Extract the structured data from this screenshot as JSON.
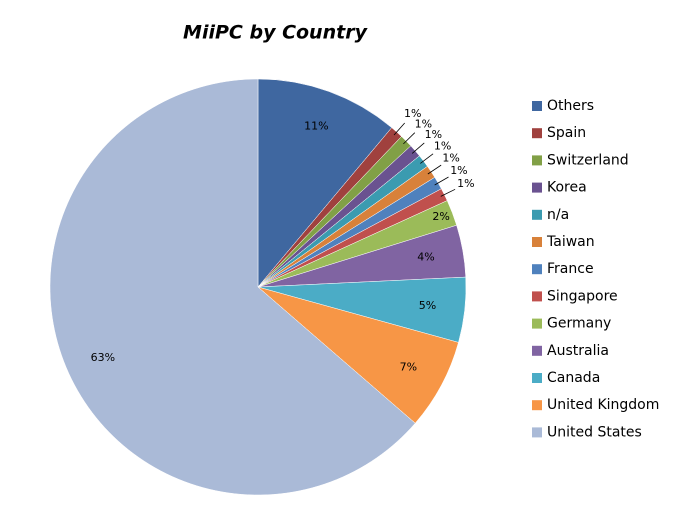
{
  "chart_data": {
    "type": "pie",
    "title": "MiiPC by Country",
    "categories": [
      "Others",
      "Spain",
      "Switzerland",
      "Korea",
      "n/a",
      "Taiwan",
      "France",
      "Singapore",
      "Germany",
      "Australia",
      "Canada",
      "United Kingdom",
      "United States"
    ],
    "values": [
      11,
      1,
      1,
      1,
      1,
      1,
      1,
      1,
      2,
      4,
      5,
      7,
      63
    ],
    "value_labels": [
      "11%",
      "1%",
      "1%",
      "1%",
      "1%",
      "1%",
      "1%",
      "1%",
      "2%",
      "4%",
      "5%",
      "7%",
      "63%"
    ],
    "colors": [
      "#3f67a0",
      "#a0413e",
      "#81a046",
      "#6a5290",
      "#3b9bb0",
      "#d8813a",
      "#4f81bd",
      "#c0504d",
      "#9bbb59",
      "#8064a2",
      "#4bacc6",
      "#f79646",
      "#aabad7"
    ],
    "legend": "right"
  }
}
